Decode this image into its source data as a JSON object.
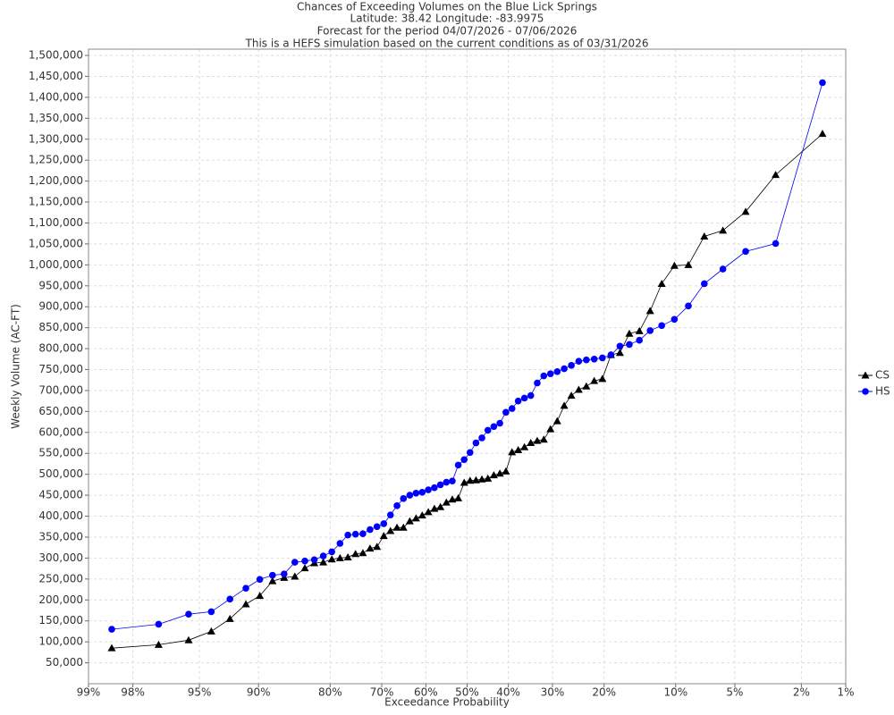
{
  "chart_data": {
    "type": "line",
    "title": "Chances of Exceeding Volumes on the Blue Lick Springs",
    "subtitles": [
      "Latitude: 38.42 Longitude: -83.9975",
      "Forecast for the period 04/07/2026 - 07/06/2026",
      "This is a HEFS simulation based on the current conditions as of 03/31/2026"
    ],
    "x_label": "Exceedance Probability",
    "y_label": "Weekly Volume (AC-FT)",
    "xscale": "probability",
    "grid": true,
    "legend": "right",
    "xlim": [
      99,
      1
    ],
    "ylim": [
      0,
      1515000
    ],
    "xticks": [
      {
        "value": 99,
        "label": "99%"
      },
      {
        "value": 98,
        "label": "98%"
      },
      {
        "value": 95,
        "label": "95%"
      },
      {
        "value": 90,
        "label": "90%"
      },
      {
        "value": 80,
        "label": "80%"
      },
      {
        "value": 70,
        "label": "70%"
      },
      {
        "value": 60,
        "label": "60%"
      },
      {
        "value": 50,
        "label": "50%"
      },
      {
        "value": 40,
        "label": "40%"
      },
      {
        "value": 30,
        "label": "30%"
      },
      {
        "value": 20,
        "label": "20%"
      },
      {
        "value": 10,
        "label": "10%"
      },
      {
        "value": 5,
        "label": "5%"
      },
      {
        "value": 2,
        "label": "2%"
      },
      {
        "value": 1,
        "label": "1%"
      }
    ],
    "yticks": [
      {
        "value": 50000,
        "label": "50,000"
      },
      {
        "value": 100000,
        "label": "100,000"
      },
      {
        "value": 150000,
        "label": "150,000"
      },
      {
        "value": 200000,
        "label": "200,000"
      },
      {
        "value": 250000,
        "label": "250,000"
      },
      {
        "value": 300000,
        "label": "300,000"
      },
      {
        "value": 350000,
        "label": "350,000"
      },
      {
        "value": 400000,
        "label": "400,000"
      },
      {
        "value": 450000,
        "label": "450,000"
      },
      {
        "value": 500000,
        "label": "500,000"
      },
      {
        "value": 550000,
        "label": "550,000"
      },
      {
        "value": 600000,
        "label": "600,000"
      },
      {
        "value": 650000,
        "label": "650,000"
      },
      {
        "value": 700000,
        "label": "700,000"
      },
      {
        "value": 750000,
        "label": "750,000"
      },
      {
        "value": 800000,
        "label": "800,000"
      },
      {
        "value": 850000,
        "label": "850,000"
      },
      {
        "value": 900000,
        "label": "900,000"
      },
      {
        "value": 950000,
        "label": "950,000"
      },
      {
        "value": 1000000,
        "label": "1,000,000"
      },
      {
        "value": 1050000,
        "label": "1,050,000"
      },
      {
        "value": 1100000,
        "label": "1,100,000"
      },
      {
        "value": 1150000,
        "label": "1,150,000"
      },
      {
        "value": 1200000,
        "label": "1,200,000"
      },
      {
        "value": 1250000,
        "label": "1,250,000"
      },
      {
        "value": 1300000,
        "label": "1,300,000"
      },
      {
        "value": 1350000,
        "label": "1,350,000"
      },
      {
        "value": 1400000,
        "label": "1,400,000"
      },
      {
        "value": 1450000,
        "label": "1,450,000"
      },
      {
        "value": 1500000,
        "label": "1,500,000"
      }
    ],
    "x": [
      98.55,
      97.1,
      95.65,
      94.2,
      92.75,
      91.3,
      89.86,
      88.41,
      86.96,
      85.51,
      84.06,
      82.61,
      81.16,
      79.71,
      78.26,
      76.81,
      75.36,
      73.91,
      72.46,
      71.01,
      69.57,
      68.12,
      66.67,
      65.22,
      63.77,
      62.32,
      60.87,
      59.42,
      57.97,
      56.52,
      55.07,
      53.62,
      52.17,
      50.72,
      49.28,
      47.83,
      46.38,
      44.93,
      43.48,
      42.03,
      40.58,
      39.13,
      37.68,
      36.23,
      34.78,
      33.33,
      31.88,
      30.43,
      28.99,
      27.54,
      26.09,
      24.64,
      23.19,
      21.74,
      20.29,
      18.84,
      17.39,
      15.94,
      14.49,
      13.04,
      11.59,
      10.14,
      8.7,
      7.25,
      5.8,
      4.35,
      2.9,
      1.45
    ],
    "series": [
      {
        "name": "CS",
        "color": "#000000",
        "marker": "triangle",
        "values": [
          85000,
          93000,
          104000,
          125000,
          155000,
          190000,
          210000,
          245000,
          253000,
          256000,
          276000,
          288000,
          290000,
          297000,
          300000,
          302000,
          310000,
          312000,
          323000,
          327000,
          353000,
          365000,
          373000,
          373000,
          388000,
          395000,
          402000,
          410000,
          418000,
          422000,
          433000,
          440000,
          443000,
          480000,
          485000,
          486000,
          488000,
          490000,
          498000,
          502000,
          507000,
          553000,
          558000,
          565000,
          575000,
          580000,
          583000,
          608000,
          627000,
          664000,
          688000,
          702000,
          710000,
          723000,
          728000,
          785000,
          790000,
          836000,
          842000,
          890000,
          955000,
          998000,
          1000000,
          1068000,
          1082000,
          1127000,
          1215000,
          1313000
        ]
      },
      {
        "name": "HS",
        "color": "#0000ff",
        "marker": "circle",
        "values": [
          130000,
          142000,
          166000,
          172000,
          202000,
          228000,
          249000,
          259000,
          262000,
          290000,
          293000,
          296000,
          305000,
          315000,
          335000,
          355000,
          357000,
          358000,
          368000,
          375000,
          382000,
          403000,
          425000,
          442000,
          450000,
          455000,
          457000,
          463000,
          468000,
          475000,
          481000,
          484000,
          522000,
          535000,
          552000,
          575000,
          587000,
          605000,
          614000,
          622000,
          648000,
          657000,
          675000,
          682000,
          688000,
          718000,
          735000,
          740000,
          745000,
          752000,
          760000,
          770000,
          773000,
          775000,
          778000,
          785000,
          806000,
          810000,
          820000,
          843000,
          855000,
          870000,
          902000,
          955000,
          990000,
          1032000,
          1051000,
          1435000
        ]
      }
    ]
  }
}
